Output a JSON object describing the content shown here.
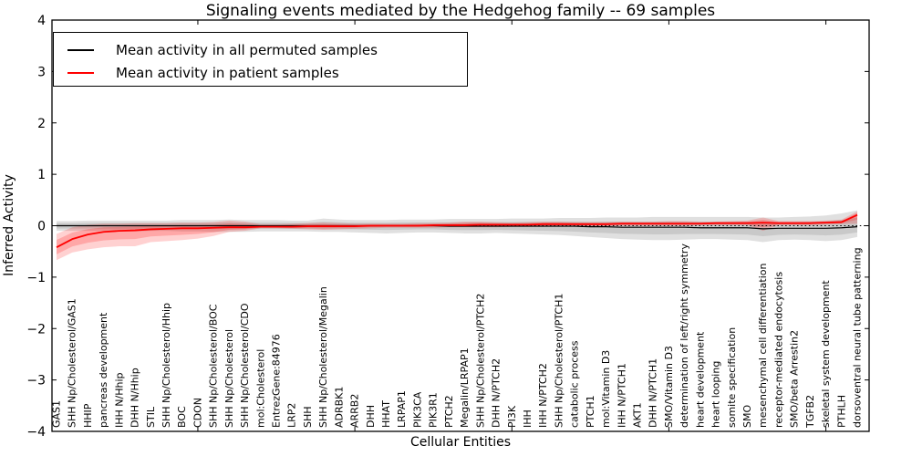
{
  "chart_data": {
    "type": "line",
    "title": "Signaling events mediated by the Hedgehog family -- 69 samples",
    "xlabel": "Cellular Entities",
    "ylabel": "Inferred Activity",
    "ylim": [
      -4,
      4
    ],
    "yticks": [
      4,
      3,
      2,
      1,
      0,
      -1,
      -2,
      -3,
      -4
    ],
    "ytick_labels": [
      "4",
      "3",
      "2",
      "1",
      "0",
      "−1",
      "−2",
      "−3",
      "−4"
    ],
    "xtick_category_indices": [
      9,
      19,
      29,
      39,
      49
    ],
    "grid": false,
    "legend_position": "upper left",
    "zero_line": {
      "y": 0,
      "style": "dotted",
      "color": "#000000"
    },
    "categories": [
      "GAS1",
      "SHH Np/Cholesterol/GAS1",
      "HHIP",
      "pancreas development",
      "IHH N/Hhip",
      "DHH N/Hhip",
      "STIL",
      "SHH Np/Cholesterol/Hhip",
      "BOC",
      "CDON",
      "SHH Np/Cholesterol/BOC",
      "SHH Np/Cholesterol",
      "SHH Np/Cholesterol/CDO",
      "mol:Cholesterol",
      "EntrezGene:84976",
      "LRP2",
      "SHH",
      "SHH Np/Cholesterol/Megalin",
      "ADRBK1",
      "ARRB2",
      "DHH",
      "HHAT",
      "LRPAP1",
      "PIK3CA",
      "PIK3R1",
      "PTCH2",
      "Megalin/LRPAP1",
      "SHH Np/Cholesterol/PTCH2",
      "DHH N/PTCH2",
      "PI3K",
      "IHH",
      "IHH N/PTCH2",
      "SHH Np/Cholesterol/PTCH1",
      "catabolic process",
      "PTCH1",
      "mol:Vitamin D3",
      "IHH N/PTCH1",
      "AKT1",
      "DHH N/PTCH1",
      "SMO/Vitamin D3",
      "determination of left/right symmetry",
      "heart development",
      "heart looping",
      "somite specification",
      "SMO",
      "mesenchymal cell differentiation",
      "receptor-mediated endocytosis",
      "SMO/beta Arrestin2",
      "TGFB2",
      "skeletal system development",
      "PTHLH",
      "dorsoventral neural tube patterning"
    ],
    "series": [
      {
        "name": "Mean activity in all permuted samples",
        "color": "#000000",
        "line_width": 1.2,
        "band_color": "#000000",
        "band_opacity_outer": 0.12,
        "band_opacity_inner": 0.1,
        "values": [
          0,
          0,
          0,
          0,
          0,
          0,
          0,
          0,
          0,
          0,
          0,
          0,
          0,
          0,
          0,
          0,
          0,
          0,
          0,
          0,
          0,
          0,
          0,
          0,
          0,
          -0.01,
          -0.01,
          -0.01,
          -0.01,
          -0.01,
          -0.01,
          -0.01,
          -0.01,
          -0.01,
          -0.02,
          -0.02,
          -0.03,
          -0.03,
          -0.03,
          -0.03,
          -0.03,
          -0.04,
          -0.04,
          -0.04,
          -0.04,
          -0.06,
          -0.05,
          -0.05,
          -0.05,
          -0.05,
          -0.04,
          -0.02
        ],
        "band_upper": [
          0.09,
          0.09,
          0.1,
          0.1,
          0.1,
          0.1,
          0.1,
          0.1,
          0.11,
          0.11,
          0.11,
          0.12,
          0.11,
          0.11,
          0.11,
          0.1,
          0.1,
          0.14,
          0.12,
          0.11,
          0.11,
          0.11,
          0.12,
          0.12,
          0.12,
          0.13,
          0.13,
          0.13,
          0.13,
          0.14,
          0.14,
          0.14,
          0.15,
          0.15,
          0.15,
          0.16,
          0.16,
          0.16,
          0.17,
          0.17,
          0.17,
          0.17,
          0.17,
          0.17,
          0.17,
          0.16,
          0.16,
          0.17,
          0.18,
          0.2,
          0.24,
          0.3
        ],
        "band_lower": [
          -0.1,
          -0.1,
          -0.1,
          -0.1,
          -0.11,
          -0.11,
          -0.1,
          -0.1,
          -0.11,
          -0.11,
          -0.12,
          -0.12,
          -0.12,
          -0.11,
          -0.11,
          -0.11,
          -0.11,
          -0.12,
          -0.12,
          -0.13,
          -0.14,
          -0.15,
          -0.14,
          -0.13,
          -0.13,
          -0.14,
          -0.15,
          -0.15,
          -0.14,
          -0.15,
          -0.16,
          -0.17,
          -0.18,
          -0.2,
          -0.22,
          -0.24,
          -0.26,
          -0.27,
          -0.28,
          -0.28,
          -0.27,
          -0.26,
          -0.26,
          -0.27,
          -0.28,
          -0.32,
          -0.28,
          -0.27,
          -0.28,
          -0.3,
          -0.28,
          -0.22
        ]
      },
      {
        "name": "Mean activity in patient samples",
        "color": "#ff0000",
        "line_width": 1.8,
        "band_color": "#ff0000",
        "band_opacity_outer": 0.18,
        "band_opacity_inner": 0.2,
        "values": [
          -0.42,
          -0.26,
          -0.17,
          -0.12,
          -0.1,
          -0.09,
          -0.07,
          -0.06,
          -0.05,
          -0.05,
          -0.04,
          -0.03,
          -0.03,
          -0.02,
          -0.02,
          -0.02,
          -0.01,
          -0.01,
          -0.01,
          -0.01,
          0,
          0,
          0,
          0,
          0.01,
          0.01,
          0.01,
          0.02,
          0.02,
          0.02,
          0.02,
          0.03,
          0.03,
          0.03,
          0.03,
          0.03,
          0.04,
          0.04,
          0.04,
          0.04,
          0.04,
          0.04,
          0.05,
          0.05,
          0.05,
          0.06,
          0.05,
          0.05,
          0.05,
          0.06,
          0.07,
          0.21
        ],
        "band_upper": [
          -0.16,
          -0.03,
          0.02,
          0.04,
          0.04,
          0.05,
          0.05,
          0.05,
          0.06,
          0.06,
          0.07,
          0.1,
          0.08,
          0.03,
          0.03,
          0.04,
          0.05,
          0.06,
          0.05,
          0.04,
          0.04,
          0.04,
          0.04,
          0.05,
          0.05,
          0.06,
          0.08,
          0.08,
          0.07,
          0.06,
          0.07,
          0.08,
          0.08,
          0.07,
          0.07,
          0.07,
          0.08,
          0.08,
          0.08,
          0.09,
          0.09,
          0.08,
          0.08,
          0.09,
          0.1,
          0.16,
          0.09,
          0.09,
          0.09,
          0.1,
          0.12,
          0.28
        ],
        "band_lower": [
          -0.67,
          -0.52,
          -0.46,
          -0.42,
          -0.4,
          -0.4,
          -0.32,
          -0.3,
          -0.28,
          -0.25,
          -0.2,
          -0.12,
          -0.1,
          -0.05,
          -0.05,
          -0.06,
          -0.07,
          -0.08,
          -0.07,
          -0.06,
          -0.05,
          -0.04,
          -0.04,
          -0.04,
          -0.04,
          -0.03,
          -0.03,
          -0.03,
          -0.03,
          -0.02,
          -0.02,
          -0.02,
          -0.01,
          -0.01,
          -0.01,
          -0.01,
          0,
          0,
          0,
          0,
          0,
          0.01,
          0.01,
          0.01,
          0.01,
          -0.1,
          0.01,
          0.01,
          0.01,
          0.02,
          0.03,
          0.04
        ]
      }
    ]
  }
}
